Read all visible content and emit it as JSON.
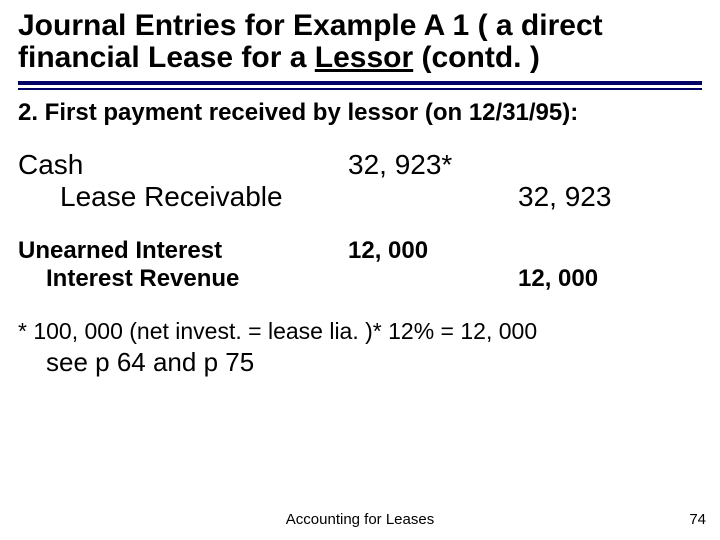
{
  "title": {
    "line1": "Journal Entries for Example A 1 ( a direct",
    "line2_pre": "financial Lease for a ",
    "line2_underlined": "Lessor",
    "line2_post": "  (contd. )"
  },
  "divider": {
    "thick_color": "#000066",
    "thin_color": "#000066"
  },
  "subheading": "2. First payment received by lessor (on 12/31/95):",
  "entry1": {
    "debit_account": "Cash",
    "debit_amount": "32, 923*",
    "credit_account": "Lease Receivable",
    "credit_amount": "32, 923"
  },
  "entry2": {
    "debit_account": "Unearned Interest",
    "debit_amount": "12, 000",
    "credit_account": "Interest Revenue",
    "credit_amount": "12, 000"
  },
  "footnote": {
    "line1": "* 100, 000 (net invest. = lease lia. )* 12% = 12, 000",
    "line2": "see p 64 and p 75"
  },
  "footer": {
    "center": "Accounting for Leases",
    "page": "74"
  }
}
